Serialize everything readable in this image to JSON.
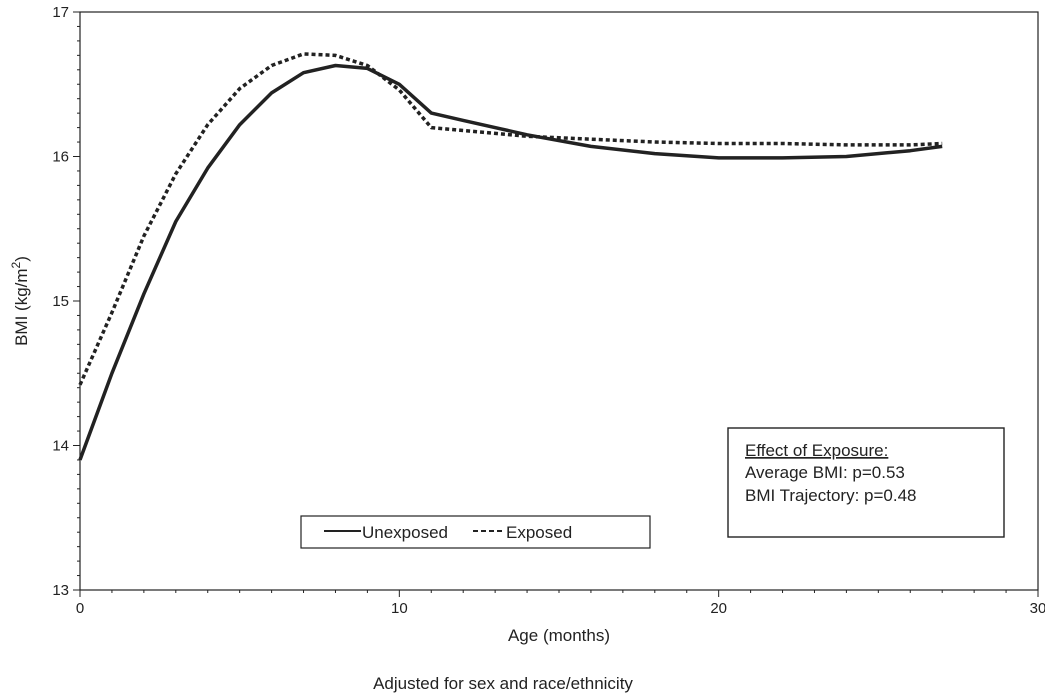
{
  "chart_data": {
    "type": "line",
    "xlabel": "Age (months)",
    "ylabel_main": "BMI (kg/m",
    "ylabel_sup": "2",
    "ylabel_close": ")",
    "note": "Adjusted for sex and race/ethnicity",
    "xlim": [
      0,
      30
    ],
    "ylim": [
      13,
      17
    ],
    "x_ticks": [
      0,
      10,
      20,
      30
    ],
    "y_ticks": [
      13,
      14,
      15,
      16,
      17
    ],
    "series": [
      {
        "name": "Unexposed",
        "style": "solid",
        "x": [
          0,
          1,
          2,
          3,
          4,
          5,
          6,
          7,
          8,
          9,
          10,
          11,
          12,
          14,
          16,
          18,
          20,
          22,
          24,
          26,
          27
        ],
        "y": [
          13.9,
          14.5,
          15.05,
          15.55,
          15.92,
          16.22,
          16.44,
          16.58,
          16.63,
          16.61,
          16.5,
          16.3,
          16.25,
          16.15,
          16.07,
          16.02,
          15.99,
          15.99,
          16.0,
          16.04,
          16.07
        ]
      },
      {
        "name": "Exposed",
        "style": "dotted",
        "x": [
          0,
          1,
          2,
          3,
          4,
          5,
          6,
          7,
          8,
          9,
          10,
          11,
          12,
          14,
          16,
          18,
          20,
          22,
          24,
          26,
          27
        ],
        "y": [
          14.42,
          14.92,
          15.45,
          15.88,
          16.22,
          16.47,
          16.63,
          16.71,
          16.7,
          16.63,
          16.46,
          16.2,
          16.18,
          16.14,
          16.12,
          16.1,
          16.09,
          16.09,
          16.08,
          16.08,
          16.09
        ]
      }
    ],
    "legend": {
      "placement": "bottom-center",
      "text_solid": "Unexposed",
      "text_dashed": "Exposed"
    },
    "annotation": {
      "title": "Effect of Exposure:",
      "line1": "Average BMI: p=0.53",
      "line2": "BMI Trajectory: p=0.48"
    }
  }
}
